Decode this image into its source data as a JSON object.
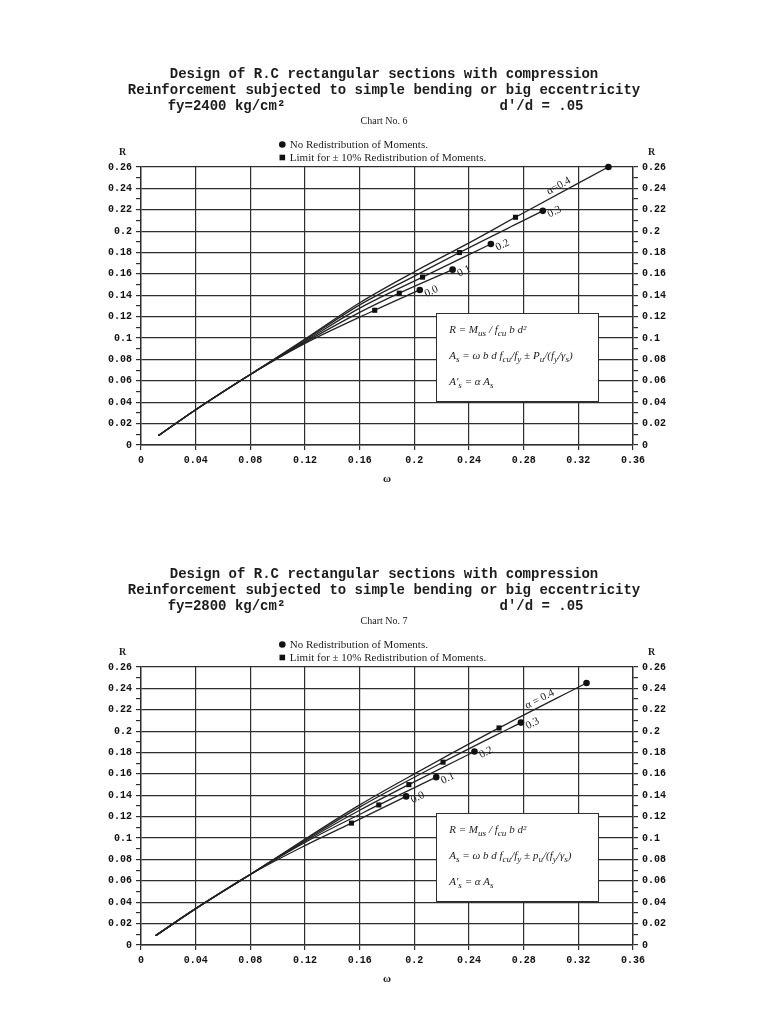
{
  "chart_data": [
    {
      "type": "line",
      "title": "Design of R.C rectangular sections with compression\nReinforcement subjected to simple bending or big eccentricity",
      "subtitle": "fy=2400 kg/cm²  d′/d = .05",
      "annotations": [
        "Chart No. 6",
        "R = M$_{us}$ / f$_{cu}$ b d²",
        "A$_{s}$ = ω b d f$_{cu}$/f$_{y}$ ± P$_{u}$/(f$_{y}$/γ$_{s}$)",
        "A′$_{s}$ = α A$_{s}$"
      ],
      "xlabel": "ω",
      "ylabel": "R",
      "y2label": "R",
      "xlim": [
        0,
        0.36
      ],
      "xticks": [
        0,
        0.04,
        0.08,
        0.12,
        0.16,
        0.2,
        0.24,
        0.28,
        0.32,
        0.36
      ],
      "ylim": [
        0,
        0.26
      ],
      "yticks": [
        0,
        {
          "value": 0.01,
          "label": null
        },
        0.02,
        {
          "value": 0.03,
          "label": null
        },
        0.04,
        {
          "value": 0.05,
          "label": null
        },
        0.06,
        {
          "value": 0.07,
          "label": null
        },
        0.08,
        {
          "value": 0.09,
          "label": null
        },
        0.1,
        {
          "value": 0.11,
          "label": null
        },
        0.12,
        {
          "value": 0.13,
          "label": null
        },
        0.14,
        {
          "value": 0.15,
          "label": null
        },
        0.16,
        {
          "value": 0.17,
          "label": null
        },
        0.18,
        {
          "value": 0.19,
          "label": null
        },
        0.2,
        {
          "value": 0.21,
          "label": null
        },
        0.22,
        {
          "value": 0.23,
          "label": null
        },
        0.24,
        {
          "value": 0.25,
          "label": null
        },
        0.26
      ],
      "y2lim": [
        0,
        0.26
      ],
      "y2ticks": [
        0,
        {
          "value": 0.01,
          "label": null
        },
        0.02,
        {
          "value": 0.03,
          "label": null
        },
        0.04,
        {
          "value": 0.05,
          "label": null
        },
        0.06,
        {
          "value": 0.07,
          "label": null
        },
        0.08,
        {
          "value": 0.09,
          "label": null
        },
        0.1,
        {
          "value": 0.11,
          "label": null
        },
        0.12,
        {
          "value": 0.13,
          "label": null
        },
        0.14,
        {
          "value": 0.15,
          "label": null
        },
        0.16,
        {
          "value": 0.17,
          "label": null
        },
        0.18,
        {
          "value": 0.19,
          "label": null
        },
        0.2,
        {
          "value": 0.21,
          "label": null
        },
        0.22,
        {
          "value": 0.23,
          "label": null
        },
        0.24,
        {
          "value": 0.25,
          "label": null
        },
        0.26
      ],
      "grid": true,
      "legend": "top",
      "marker": "none",
      "line_style": "solid",
      "series": [
        {
          "name": "0.0",
          "color": "#222222",
          "x": [
            0.013,
            0.04,
            0.08,
            0.12,
            0.171,
            0.204
          ],
          "values": [
            0.009,
            0.033,
            0.066,
            0.095,
            0.126,
            0.145
          ]
        },
        {
          "name": "0.1",
          "color": "#222222",
          "x": [
            0.013,
            0.04,
            0.08,
            0.12,
            0.16,
            0.189,
            0.228
          ],
          "values": [
            0.009,
            0.033,
            0.066,
            0.096,
            0.124,
            0.142,
            0.164
          ]
        },
        {
          "name": "0.2",
          "color": "#222222",
          "x": [
            0.013,
            0.04,
            0.08,
            0.12,
            0.16,
            0.206,
            0.256
          ],
          "values": [
            0.009,
            0.033,
            0.066,
            0.097,
            0.128,
            0.157,
            0.188
          ]
        },
        {
          "name": "0.3",
          "color": "#222222",
          "x": [
            0.013,
            0.04,
            0.08,
            0.12,
            0.16,
            0.2,
            0.233,
            0.294
          ],
          "values": [
            0.009,
            0.033,
            0.066,
            0.098,
            0.131,
            0.158,
            0.18,
            0.219
          ]
        },
        {
          "name": "α=0.4",
          "color": "#222222",
          "x": [
            0.013,
            0.04,
            0.08,
            0.12,
            0.16,
            0.2,
            0.24,
            0.274,
            0.342
          ],
          "values": [
            0.009,
            0.033,
            0.066,
            0.099,
            0.133,
            0.162,
            0.189,
            0.213,
            0.26
          ]
        },
        {
          "name": "No Redistribution of Moments.",
          "type": "scatter",
          "marker": "circle",
          "color": "#111111",
          "x": [
            0.204,
            0.228,
            0.256,
            0.294,
            0.342
          ],
          "values": [
            0.145,
            0.164,
            0.188,
            0.219,
            0.26
          ]
        },
        {
          "name": "Limit for ± 10% Redistribution of Moments.",
          "type": "scatter",
          "marker": "square",
          "color": "#111111",
          "x": [
            0.171,
            0.189,
            0.206,
            0.233,
            0.274
          ],
          "values": [
            0.126,
            0.142,
            0.157,
            0.18,
            0.213
          ]
        }
      ]
    },
    {
      "type": "line",
      "title": "Design of R.C rectangular sections with compression\nReinforcement subjected to simple bending or big eccentricity",
      "subtitle": "fy=2800 kg/cm²  d′/d = .05",
      "annotations": [
        "Chart No. 7",
        "R = M$_{us}$ / f$_{cu}$ b d²",
        "A$_{s}$ = ω b d f$_{cu}$/f$_{y}$ ± p$_{u}$/(f$_{y}$/γ$_{s}$)",
        "A′$_{s}$ = α A$_{s}$"
      ],
      "xlabel": "ω",
      "ylabel": "R",
      "y2label": "R",
      "xlim": [
        0,
        0.36
      ],
      "xticks": [
        0,
        0.04,
        0.08,
        0.12,
        0.16,
        0.2,
        0.24,
        0.28,
        0.32,
        0.36
      ],
      "ylim": [
        0,
        0.26
      ],
      "yticks": [
        0,
        {
          "value": 0.01,
          "label": null
        },
        0.02,
        {
          "value": 0.03,
          "label": null
        },
        0.04,
        {
          "value": 0.05,
          "label": null
        },
        0.06,
        {
          "value": 0.07,
          "label": null
        },
        0.08,
        {
          "value": 0.09,
          "label": null
        },
        0.1,
        {
          "value": 0.11,
          "label": null
        },
        0.12,
        {
          "value": 0.13,
          "label": null
        },
        0.14,
        {
          "value": 0.15,
          "label": null
        },
        0.16,
        {
          "value": 0.17,
          "label": null
        },
        0.18,
        {
          "value": 0.19,
          "label": null
        },
        0.2,
        {
          "value": 0.21,
          "label": null
        },
        0.22,
        {
          "value": 0.23,
          "label": null
        },
        0.24,
        {
          "value": 0.25,
          "label": null
        },
        0.26
      ],
      "y2lim": [
        0,
        0.26
      ],
      "y2ticks": [
        0,
        {
          "value": 0.01,
          "label": null
        },
        0.02,
        {
          "value": 0.03,
          "label": null
        },
        0.04,
        {
          "value": 0.05,
          "label": null
        },
        0.06,
        {
          "value": 0.07,
          "label": null
        },
        0.08,
        {
          "value": 0.09,
          "label": null
        },
        0.1,
        {
          "value": 0.11,
          "label": null
        },
        0.12,
        {
          "value": 0.13,
          "label": null
        },
        0.14,
        {
          "value": 0.15,
          "label": null
        },
        0.16,
        {
          "value": 0.17,
          "label": null
        },
        0.18,
        {
          "value": 0.19,
          "label": null
        },
        0.2,
        {
          "value": 0.21,
          "label": null
        },
        0.22,
        {
          "value": 0.23,
          "label": null
        },
        0.24,
        {
          "value": 0.25,
          "label": null
        },
        0.26
      ],
      "grid": true,
      "legend": "top",
      "marker": "none",
      "line_style": "solid",
      "series": [
        {
          "name": "0.0",
          "color": "#222222",
          "x": [
            0.011,
            0.04,
            0.08,
            0.12,
            0.154,
            0.194
          ],
          "values": [
            0.009,
            0.034,
            0.066,
            0.093,
            0.114,
            0.139
          ]
        },
        {
          "name": "0.1",
          "color": "#222222",
          "x": [
            0.011,
            0.04,
            0.08,
            0.12,
            0.174,
            0.216
          ],
          "values": [
            0.009,
            0.034,
            0.066,
            0.096,
            0.131,
            0.157
          ]
        },
        {
          "name": "0.2",
          "color": "#222222",
          "x": [
            0.011,
            0.04,
            0.08,
            0.12,
            0.16,
            0.196,
            0.244
          ],
          "values": [
            0.009,
            0.034,
            0.066,
            0.097,
            0.126,
            0.15,
            0.181
          ]
        },
        {
          "name": "0.3",
          "color": "#222222",
          "x": [
            0.011,
            0.04,
            0.08,
            0.12,
            0.16,
            0.221,
            0.278
          ],
          "values": [
            0.009,
            0.034,
            0.066,
            0.098,
            0.129,
            0.171,
            0.208
          ]
        },
        {
          "name": "α = 0.4",
          "color": "#222222",
          "x": [
            0.011,
            0.04,
            0.08,
            0.12,
            0.16,
            0.2,
            0.262,
            0.326
          ],
          "values": [
            0.009,
            0.034,
            0.066,
            0.099,
            0.131,
            0.16,
            0.203,
            0.245
          ]
        },
        {
          "name": "No Redistribution of Moments.",
          "type": "scatter",
          "marker": "circle",
          "color": "#111111",
          "x": [
            0.194,
            0.216,
            0.244,
            0.278,
            0.326
          ],
          "values": [
            0.139,
            0.157,
            0.181,
            0.208,
            0.245
          ]
        },
        {
          "name": "Limit for ± 10% Redistribution of Moments.",
          "type": "scatter",
          "marker": "square",
          "color": "#111111",
          "x": [
            0.154,
            0.174,
            0.196,
            0.221,
            0.262
          ],
          "values": [
            0.114,
            0.131,
            0.15,
            0.171,
            0.203
          ]
        }
      ]
    }
  ]
}
